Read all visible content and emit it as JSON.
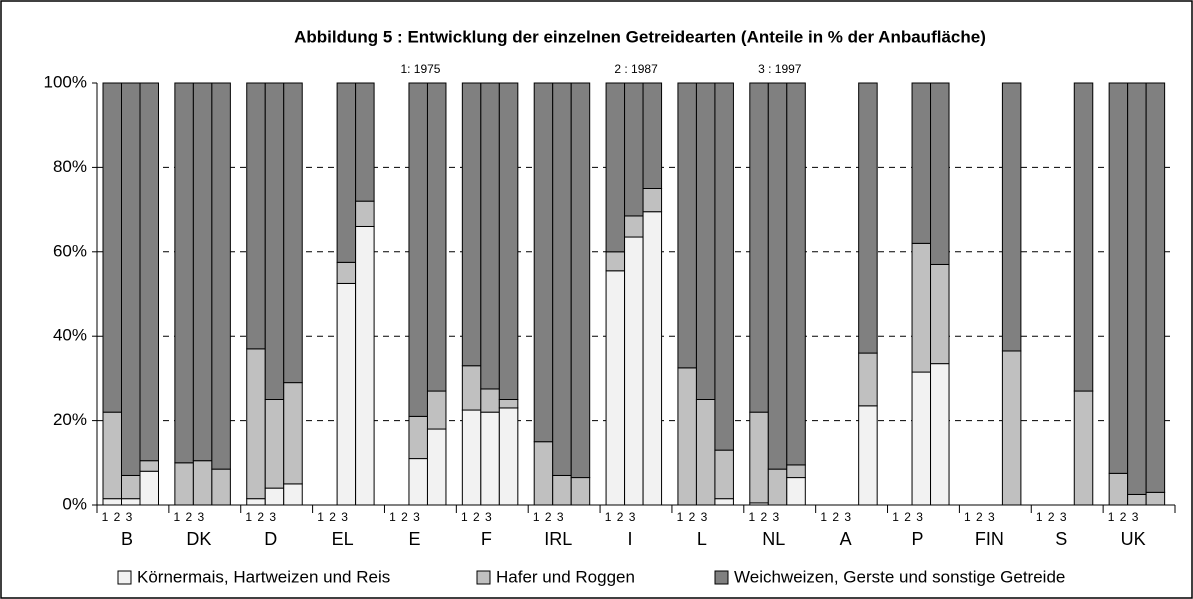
{
  "chart_data": {
    "type": "stacked_bar",
    "title": "Abbildung 5 : Entwicklung der einzelnen Getreidearten (Anteile in % der Anbaufläche)",
    "annotations": [
      {
        "text": "1: 1975",
        "category": 4
      },
      {
        "text": "2 : 1987",
        "category": 7
      },
      {
        "text": "3 : 1997",
        "category": 9
      }
    ],
    "categories": [
      "B",
      "DK",
      "D",
      "EL",
      "E",
      "F",
      "IRL",
      "I",
      "L",
      "NL",
      "A",
      "P",
      "FIN",
      "S",
      "UK"
    ],
    "periods": [
      "1",
      "2",
      "3"
    ],
    "series": [
      {
        "name": "Körnermais, Hartweizen und Reis",
        "color": "#f2f2f2",
        "values": [
          [
            1.5,
            1.5,
            8
          ],
          [
            0,
            0,
            0
          ],
          [
            1.5,
            4,
            5
          ],
          [
            null,
            52.5,
            66
          ],
          [
            null,
            11,
            18
          ],
          [
            22.5,
            22,
            23
          ],
          [
            0,
            0,
            0
          ],
          [
            55.5,
            63.5,
            69.5
          ],
          [
            0,
            0,
            1.5
          ],
          [
            0.5,
            0,
            6.5
          ],
          [
            null,
            null,
            23.5
          ],
          [
            null,
            31.5,
            33.5
          ],
          [
            null,
            null,
            0
          ],
          [
            null,
            null,
            0
          ],
          [
            0,
            0,
            0
          ]
        ]
      },
      {
        "name": "Hafer und Roggen",
        "color": "#c0c0c0",
        "values": [
          [
            20.5,
            5.5,
            2.5
          ],
          [
            10,
            10.5,
            8.5
          ],
          [
            35.5,
            21,
            24
          ],
          [
            null,
            5,
            6
          ],
          [
            null,
            10,
            9
          ],
          [
            10.5,
            5.5,
            2
          ],
          [
            15,
            7,
            6.5
          ],
          [
            4.5,
            5,
            5.5
          ],
          [
            32.5,
            25,
            11.5
          ],
          [
            21.5,
            8.5,
            3
          ],
          [
            null,
            null,
            12.5
          ],
          [
            null,
            30.5,
            23.5
          ],
          [
            null,
            null,
            36.5
          ],
          [
            null,
            null,
            27
          ],
          [
            7.5,
            2.5,
            3
          ]
        ]
      },
      {
        "name": "Weichweizen, Gerste und sonstige Getreide",
        "color": "#808080",
        "values": [
          [
            78,
            93,
            89.5
          ],
          [
            90,
            89.5,
            91.5
          ],
          [
            63,
            75,
            71
          ],
          [
            null,
            42.5,
            28
          ],
          [
            null,
            79,
            73
          ],
          [
            67,
            72.5,
            75
          ],
          [
            85,
            93,
            93.5
          ],
          [
            40,
            31.5,
            25
          ],
          [
            67.5,
            75,
            87
          ],
          [
            78,
            91.5,
            90.5
          ],
          [
            null,
            null,
            64
          ],
          [
            null,
            38,
            43
          ],
          [
            null,
            null,
            63.5
          ],
          [
            null,
            null,
            73
          ],
          [
            92.5,
            97.5,
            97
          ]
        ]
      }
    ],
    "ylim": [
      0,
      100
    ],
    "yticks": [
      {
        "value": 0,
        "label": "0%"
      },
      {
        "value": 20,
        "label": "20%"
      },
      {
        "value": 40,
        "label": "40%"
      },
      {
        "value": 60,
        "label": "60%"
      },
      {
        "value": 80,
        "label": "80%"
      },
      {
        "value": 100,
        "label": "100%"
      }
    ],
    "grid": true
  }
}
